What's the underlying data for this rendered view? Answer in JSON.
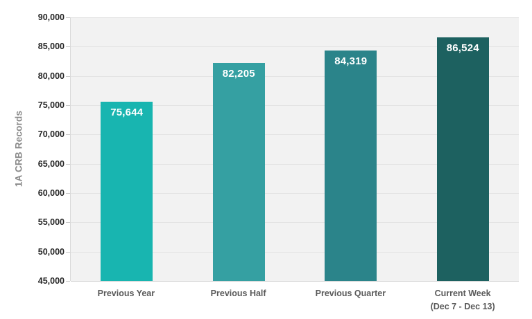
{
  "chart_data": {
    "type": "bar",
    "title": "",
    "ylabel": "1A CRB Records",
    "xlabel": "",
    "categories": [
      "Previous Year",
      "Previous Half",
      "Previous Quarter",
      "Current Week\n(Dec 7 - Dec 13)"
    ],
    "values": [
      75644,
      82205,
      84319,
      86524
    ],
    "value_labels": [
      "75,644",
      "82,205",
      "84,319",
      "86,524"
    ],
    "bar_colors": [
      "#18b5b0",
      "#35a0a2",
      "#2b848a",
      "#1d6160"
    ],
    "ylim": [
      45000,
      90000
    ],
    "ytick_step": 5000,
    "ytick_labels_top_to_bottom": [
      "90,000",
      "85,000",
      "80,000",
      "75,000",
      "70,000",
      "65,000",
      "60,000",
      "55,000",
      "50,000",
      "45,000"
    ],
    "grid": true,
    "legend": "none",
    "value_label_color": "#ffffff"
  },
  "colors": {
    "page_background": "#ffffff",
    "plot_background": "#f2f2f2",
    "gridline": "#e3e3e3",
    "axis_line": "#d4d4d4",
    "tick": "#c9c9c9",
    "ytick_text": "#262626",
    "xtick_text": "#595959",
    "ytitle_text": "#8a8a8a"
  }
}
